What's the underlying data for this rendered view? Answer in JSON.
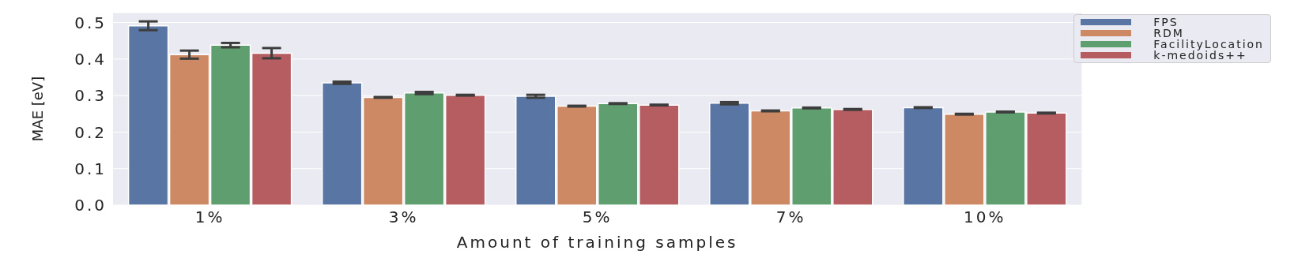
{
  "chart_data": {
    "type": "bar",
    "xlabel": "Amount of training samples",
    "ylabel": "MAE [eV]",
    "categories": [
      "1%",
      "3%",
      "5%",
      "7%",
      "10%"
    ],
    "series": [
      {
        "name": "FPS",
        "color": "#5975a4",
        "values": [
          0.491,
          0.335,
          0.298,
          0.279,
          0.267
        ],
        "errors": [
          0.012,
          0.003,
          0.004,
          0.003,
          0.001
        ]
      },
      {
        "name": "RDM",
        "color": "#cc8963",
        "values": [
          0.412,
          0.295,
          0.271,
          0.258,
          0.249
        ],
        "errors": [
          0.011,
          0.001,
          0.001,
          0.001,
          0.001
        ]
      },
      {
        "name": "FacilityLocation",
        "color": "#5f9e6e",
        "values": [
          0.438,
          0.307,
          0.278,
          0.266,
          0.255
        ],
        "errors": [
          0.006,
          0.003,
          0.001,
          0.001,
          0.001
        ]
      },
      {
        "name": "k-medoids++",
        "color": "#b55d60",
        "values": [
          0.416,
          0.301,
          0.274,
          0.262,
          0.252
        ],
        "errors": [
          0.014,
          0.001,
          0.001,
          0.001,
          0.001
        ]
      }
    ],
    "ylim": [
      0,
      0.527
    ],
    "yticks": [
      {
        "value": 0,
        "label": "0.0"
      },
      0.1,
      0.2,
      0.3,
      0.4,
      0.5
    ],
    "grid": "y",
    "legend": "top right"
  }
}
